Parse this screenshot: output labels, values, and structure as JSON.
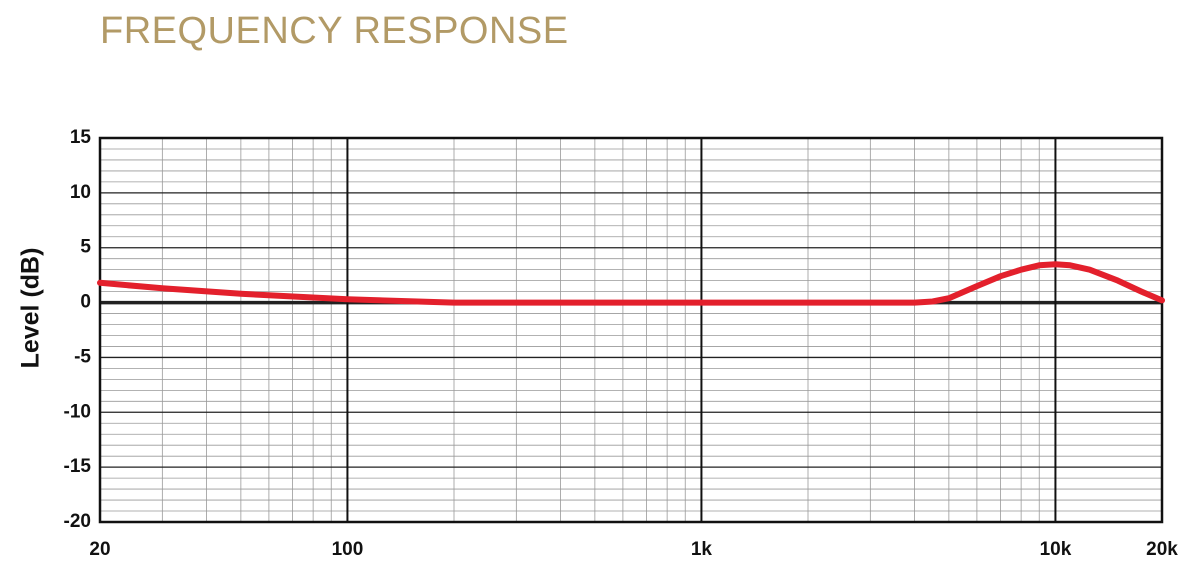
{
  "chart_data": {
    "type": "line",
    "title": "FREQUENCY RESPONSE",
    "y_label": "Level (dB)",
    "x": [
      20,
      30,
      50,
      100,
      200,
      500,
      1000,
      2000,
      4000,
      4500,
      5000,
      6000,
      7000,
      8000,
      9000,
      10000,
      11000,
      12500,
      15000,
      17500,
      20000
    ],
    "values": [
      1.8,
      1.3,
      0.8,
      0.3,
      0,
      0,
      0,
      0,
      0,
      0.1,
      0.4,
      1.5,
      2.4,
      3.0,
      3.4,
      3.5,
      3.4,
      3.0,
      2.0,
      1.0,
      0.2
    ],
    "color": "#e3202c",
    "x_scale": "log",
    "xlim": [
      20,
      20000
    ],
    "xticks": [
      20,
      100,
      {
        "value": 1000,
        "label": "1k"
      },
      {
        "value": 10000,
        "label": "10k"
      },
      {
        "value": 20000,
        "label": "20k"
      }
    ],
    "ylim": [
      -20,
      15
    ],
    "yticks": [
      -20,
      -15,
      -10,
      -5,
      0,
      5,
      10,
      15
    ],
    "grid": true
  }
}
